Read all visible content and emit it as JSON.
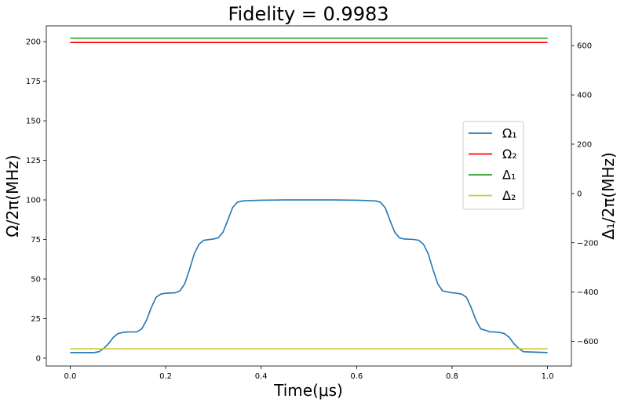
{
  "chart_data": {
    "type": "line",
    "title": "Fidelity = 0.9983",
    "xlabel": "Time(μs)",
    "ylabel_left": "Ω/2π(MHz)",
    "ylabel_right": "Δ₁/2π(MHz)",
    "xlim": [
      -0.05,
      1.05
    ],
    "ylim_left": [
      -5,
      210
    ],
    "ylim_right": [
      -700,
      680
    ],
    "x_ticks": [
      "0.0",
      "0.2",
      "0.4",
      "0.6",
      "0.8",
      "1.0"
    ],
    "x_tick_values": [
      0,
      0.2,
      0.4,
      0.6,
      0.8,
      1.0
    ],
    "y_left_ticks": [
      "0",
      "25",
      "50",
      "75",
      "100",
      "125",
      "150",
      "175",
      "200"
    ],
    "y_left_tick_values": [
      0,
      25,
      50,
      75,
      100,
      125,
      150,
      175,
      200
    ],
    "y_right_ticks": [
      "−600",
      "−400",
      "−200",
      "0",
      "200",
      "400",
      "600"
    ],
    "y_right_tick_values": [
      -600,
      -400,
      -200,
      0,
      200,
      400,
      600
    ],
    "grid": false,
    "legend_position": "center-right",
    "legend": [
      "Ω₁",
      "Ω₂",
      "Δ₁",
      "Δ₂"
    ],
    "series": [
      {
        "name": "Ω₁",
        "axis": "left",
        "color": "#1f77b4",
        "x": [
          0,
          0.05,
          0.06,
          0.07,
          0.08,
          0.09,
          0.1,
          0.11,
          0.12,
          0.14,
          0.15,
          0.16,
          0.17,
          0.18,
          0.19,
          0.2,
          0.22,
          0.23,
          0.24,
          0.25,
          0.26,
          0.27,
          0.28,
          0.3,
          0.31,
          0.32,
          0.33,
          0.34,
          0.35,
          0.36,
          0.38,
          0.4,
          0.45,
          0.5,
          0.55,
          0.6,
          0.62,
          0.64,
          0.65,
          0.66,
          0.67,
          0.68,
          0.69,
          0.7,
          0.72,
          0.73,
          0.74,
          0.75,
          0.76,
          0.77,
          0.78,
          0.8,
          0.81,
          0.82,
          0.83,
          0.84,
          0.85,
          0.86,
          0.88,
          0.89,
          0.9,
          0.91,
          0.92,
          0.93,
          0.94,
          0.95,
          1.0
        ],
        "y": [
          3.5,
          3.5,
          4,
          6,
          9,
          13,
          15.5,
          16.2,
          16.5,
          16.6,
          18.5,
          24,
          32,
          38.5,
          40.5,
          41,
          41.3,
          42.5,
          47,
          56,
          66,
          72,
          74.5,
          75.3,
          76,
          79.5,
          87,
          95,
          98.5,
          99.3,
          99.6,
          99.8,
          100,
          100,
          100,
          99.8,
          99.6,
          99.3,
          98.5,
          95,
          87,
          79.5,
          76,
          75.3,
          75,
          74.5,
          72,
          66,
          56,
          47,
          42.5,
          41.3,
          41,
          40.5,
          38.5,
          32,
          24,
          18.5,
          16.6,
          16.5,
          16.2,
          15.5,
          13,
          9,
          6,
          4,
          3.5
        ]
      },
      {
        "name": "Ω₂",
        "axis": "left",
        "color": "#ff0000",
        "x": [
          0,
          1.0
        ],
        "y": [
          199.5,
          199.5
        ]
      },
      {
        "name": "Δ₁",
        "axis": "right",
        "color": "#2ca02c",
        "x": [
          0,
          1.0
        ],
        "y": [
          630,
          630
        ]
      },
      {
        "name": "Δ₂",
        "axis": "right",
        "color": "#cccc33",
        "x": [
          0,
          1.0
        ],
        "y": [
          -630,
          -630
        ]
      }
    ]
  }
}
